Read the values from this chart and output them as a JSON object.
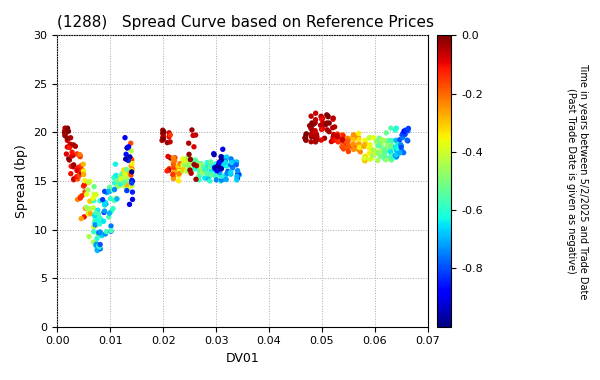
{
  "title": "(1288)   Spread Curve based on Reference Prices",
  "xlabel": "DV01",
  "ylabel": "Spread (bp)",
  "xlim": [
    0.0,
    0.07
  ],
  "ylim": [
    0,
    30
  ],
  "xticks": [
    0.0,
    0.01,
    0.02,
    0.03,
    0.04,
    0.05,
    0.06,
    0.07
  ],
  "yticks": [
    0,
    5,
    10,
    15,
    20,
    25,
    30
  ],
  "colorbar_label": "Time in years between 5/2/2025 and Trade Date\n(Past Trade Date is given as negative)",
  "colorbar_vmin": -1.0,
  "colorbar_vmax": 0.0,
  "colorbar_ticks": [
    0.0,
    -0.2,
    -0.4,
    -0.6,
    -0.8
  ],
  "cmap": "jet",
  "marker_size": 15,
  "background_color": "#ffffff",
  "grid_color": "#aaaaaa"
}
